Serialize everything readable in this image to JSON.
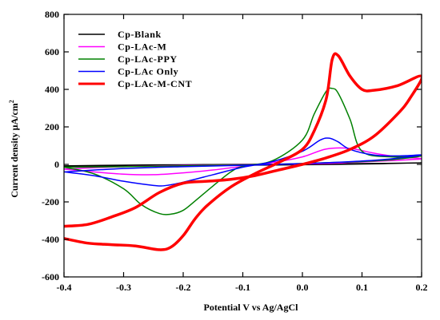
{
  "chart_data": {
    "type": "line",
    "xlabel": "Potential V vs Ag/AgCl",
    "ylabel": "Current density μA/cm",
    "ylabel_sup": "2",
    "xlim": [
      -0.4,
      0.2
    ],
    "ylim": [
      -600,
      800
    ],
    "x_ticks": [
      -0.4,
      -0.3,
      -0.2,
      -0.1,
      0.0,
      0.1,
      0.2
    ],
    "x_tick_labels": [
      "-0.4",
      "-0.3",
      "-0.2",
      "-0.1",
      "0.0",
      "0.1",
      "0.2"
    ],
    "y_ticks": [
      -600,
      -400,
      -200,
      0,
      200,
      400,
      600,
      800
    ],
    "y_tick_labels": [
      "-600",
      "-400",
      "-200",
      "0",
      "200",
      "400",
      "600",
      "800"
    ],
    "grid": false,
    "legend_position": "top-left",
    "series": [
      {
        "name": "Cp-Blank",
        "color": "#000000",
        "width": 1.5,
        "x": [
          -0.4,
          -0.3,
          -0.2,
          -0.1,
          0.0,
          0.1,
          0.2,
          0.1,
          0.0,
          -0.1,
          -0.2,
          -0.3,
          -0.4
        ],
        "y": [
          -10,
          -8,
          -6,
          -4,
          -2,
          2,
          8,
          4,
          2,
          0,
          -2,
          -4,
          -8
        ]
      },
      {
        "name": "Cp-LAc-M",
        "color": "#ff00ff",
        "width": 1.5,
        "x": [
          -0.4,
          -0.35,
          -0.3,
          -0.25,
          -0.2,
          -0.15,
          -0.1,
          -0.05,
          0.0,
          0.04,
          0.08,
          0.12,
          0.16,
          0.2,
          0.16,
          0.12,
          0.08,
          0.05,
          0.0,
          -0.05,
          -0.1,
          -0.2,
          -0.3,
          -0.4
        ],
        "y": [
          -25,
          -40,
          -52,
          -55,
          -45,
          -30,
          -10,
          10,
          40,
          82,
          85,
          60,
          40,
          30,
          22,
          16,
          10,
          6,
          2,
          0,
          -2,
          -6,
          -12,
          -25
        ]
      },
      {
        "name": "Cp-LAc-PPY",
        "color": "#008000",
        "width": 1.5,
        "x": [
          -0.4,
          -0.35,
          -0.3,
          -0.27,
          -0.24,
          -0.22,
          -0.2,
          -0.18,
          -0.15,
          -0.12,
          -0.1,
          -0.05,
          0.0,
          0.02,
          0.04,
          0.05,
          0.06,
          0.08,
          0.1,
          0.15,
          0.2,
          0.15,
          0.1,
          0.05,
          0.0,
          -0.05,
          -0.1,
          -0.15,
          -0.2,
          -0.3,
          -0.4
        ],
        "y": [
          -15,
          -50,
          -130,
          -215,
          -262,
          -265,
          -245,
          -195,
          -115,
          -40,
          -10,
          20,
          130,
          270,
          390,
          405,
          380,
          240,
          70,
          40,
          45,
          25,
          15,
          10,
          5,
          0,
          -3,
          -5,
          -8,
          -12,
          -15
        ]
      },
      {
        "name": "Cp-LAc Only",
        "color": "#0000ff",
        "width": 1.5,
        "x": [
          -0.4,
          -0.35,
          -0.3,
          -0.25,
          -0.23,
          -0.2,
          -0.15,
          -0.1,
          -0.05,
          0.0,
          0.03,
          0.045,
          0.06,
          0.08,
          0.12,
          0.16,
          0.2,
          0.15,
          0.1,
          0.05,
          0.0,
          -0.05,
          -0.1,
          -0.2,
          -0.3,
          -0.4
        ],
        "y": [
          -40,
          -60,
          -90,
          -112,
          -113,
          -95,
          -55,
          -15,
          15,
          70,
          130,
          140,
          120,
          80,
          50,
          45,
          50,
          30,
          18,
          10,
          4,
          0,
          -5,
          -12,
          -22,
          -40
        ]
      },
      {
        "name": "Cp-LAc-M-CNT",
        "color": "#ff0000",
        "width": 3.5,
        "x": [
          -0.4,
          -0.36,
          -0.32,
          -0.28,
          -0.24,
          -0.22,
          -0.2,
          -0.18,
          -0.16,
          -0.12,
          -0.08,
          -0.04,
          0.0,
          0.02,
          0.04,
          0.05,
          0.06,
          0.08,
          0.1,
          0.12,
          0.16,
          0.2,
          0.18,
          0.16,
          0.12,
          0.08,
          0.04,
          0.0,
          -0.04,
          -0.08,
          -0.12,
          -0.16,
          -0.2,
          -0.24,
          -0.28,
          -0.32,
          -0.36,
          -0.4
        ],
        "y": [
          -395,
          -420,
          -428,
          -435,
          -455,
          -440,
          -380,
          -290,
          -220,
          -120,
          -50,
          10,
          80,
          180,
          350,
          560,
          580,
          470,
          400,
          395,
          420,
          470,
          350,
          270,
          150,
          80,
          35,
          0,
          -30,
          -60,
          -80,
          -90,
          -100,
          -150,
          -230,
          -280,
          -320,
          -330
        ]
      }
    ]
  }
}
